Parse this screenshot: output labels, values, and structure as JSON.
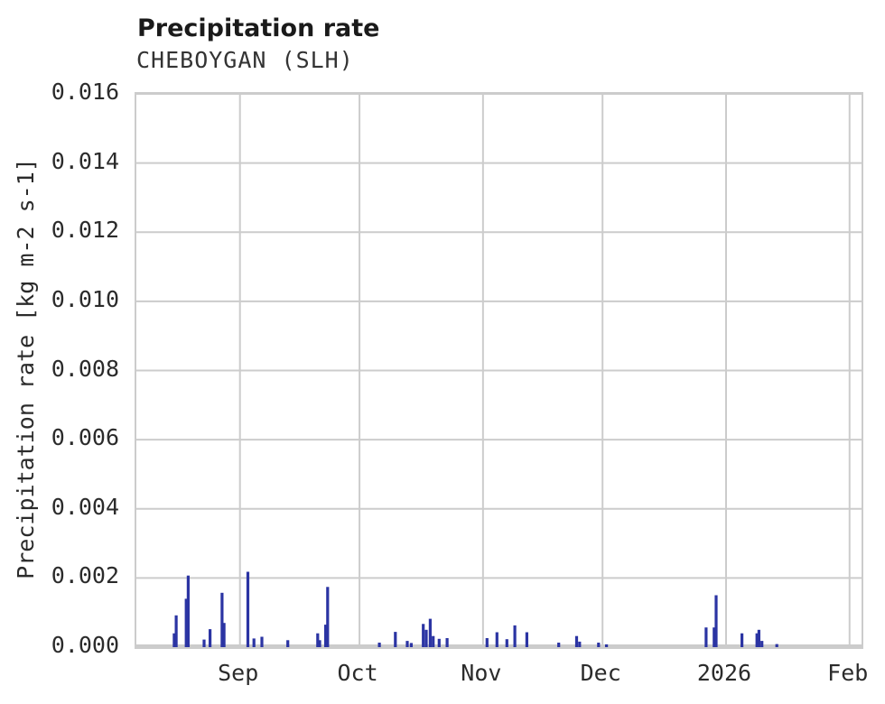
{
  "header": {
    "title": "Precipitation rate",
    "subtitle": "CHEBOYGAN (SLH)"
  },
  "colors": {
    "bar": "#2b34a3",
    "grid": "#cccccc",
    "axis_band": "#cecece",
    "text": "#2b2b2b",
    "title_text": "#1a1a1a"
  },
  "chart_data": {
    "type": "bar",
    "title": "Precipitation rate",
    "subtitle": "CHEBOYGAN (SLH)",
    "xlabel": "",
    "ylabel": "Precipitation rate [kg m-2 s-1]",
    "ylim": [
      0,
      0.016
    ],
    "grid": true,
    "legend": "none",
    "yticks": [
      {
        "value": 0.0,
        "label": "0.000"
      },
      {
        "value": 0.002,
        "label": "0.002"
      },
      {
        "value": 0.004,
        "label": "0.004"
      },
      {
        "value": 0.006,
        "label": "0.006"
      },
      {
        "value": 0.008,
        "label": "0.008"
      },
      {
        "value": 0.01,
        "label": "0.010"
      },
      {
        "value": 0.012,
        "label": "0.012"
      },
      {
        "value": 0.014,
        "label": "0.014"
      },
      {
        "value": 0.016,
        "label": "0.016"
      }
    ],
    "x_range": {
      "start": "2025-08-06",
      "end": "2026-02-04"
    },
    "xticks": [
      {
        "date": "2025-09-01",
        "label": "Sep"
      },
      {
        "date": "2025-10-01",
        "label": "Oct"
      },
      {
        "date": "2025-11-01",
        "label": "Nov"
      },
      {
        "date": "2025-12-01",
        "label": "Dec"
      },
      {
        "date": "2026-01-01",
        "label": "2026"
      },
      {
        "date": "2026-02-01",
        "label": "Feb"
      }
    ],
    "points": [
      {
        "t": "2025-08-15T12:00",
        "v": 0.0004
      },
      {
        "t": "2025-08-16T00:00",
        "v": 0.00092
      },
      {
        "t": "2025-08-18T12:00",
        "v": 0.0014
      },
      {
        "t": "2025-08-19T00:00",
        "v": 0.00207
      },
      {
        "t": "2025-08-23T00:00",
        "v": 0.00022
      },
      {
        "t": "2025-08-24T12:00",
        "v": 0.00052
      },
      {
        "t": "2025-08-27T12:00",
        "v": 0.00157
      },
      {
        "t": "2025-08-28T00:00",
        "v": 0.0007
      },
      {
        "t": "2025-09-03T00:00",
        "v": 0.00218
      },
      {
        "t": "2025-09-04T12:00",
        "v": 0.00025
      },
      {
        "t": "2025-09-06T12:00",
        "v": 0.0003
      },
      {
        "t": "2025-09-13T00:00",
        "v": 0.0002
      },
      {
        "t": "2025-09-20T12:00",
        "v": 0.0004
      },
      {
        "t": "2025-09-21T00:00",
        "v": 0.0002
      },
      {
        "t": "2025-09-22T12:00",
        "v": 0.00065
      },
      {
        "t": "2025-09-23T00:00",
        "v": 0.00174
      },
      {
        "t": "2025-10-06T00:00",
        "v": 0.00013
      },
      {
        "t": "2025-10-10T00:00",
        "v": 0.00044
      },
      {
        "t": "2025-10-13T00:00",
        "v": 0.00018
      },
      {
        "t": "2025-10-14T00:00",
        "v": 0.00012
      },
      {
        "t": "2025-10-17T00:00",
        "v": 0.00067
      },
      {
        "t": "2025-10-17T18:00",
        "v": 0.0005
      },
      {
        "t": "2025-10-18T18:00",
        "v": 0.00082
      },
      {
        "t": "2025-10-19T12:00",
        "v": 0.00032
      },
      {
        "t": "2025-10-21T00:00",
        "v": 0.00024
      },
      {
        "t": "2025-10-23T00:00",
        "v": 0.00026
      },
      {
        "t": "2025-11-02T00:00",
        "v": 0.00026
      },
      {
        "t": "2025-11-04T12:00",
        "v": 0.00043
      },
      {
        "t": "2025-11-07T00:00",
        "v": 0.00023
      },
      {
        "t": "2025-11-09T00:00",
        "v": 0.00063
      },
      {
        "t": "2025-11-12T00:00",
        "v": 0.00043
      },
      {
        "t": "2025-11-20T00:00",
        "v": 0.00013
      },
      {
        "t": "2025-11-24T12:00",
        "v": 0.00032
      },
      {
        "t": "2025-11-25T06:00",
        "v": 0.00016
      },
      {
        "t": "2025-11-30T00:00",
        "v": 0.00013
      },
      {
        "t": "2025-12-02T00:00",
        "v": 8e-05
      },
      {
        "t": "2025-12-27T00:00",
        "v": 0.00057
      },
      {
        "t": "2025-12-29T00:00",
        "v": 0.00057
      },
      {
        "t": "2025-12-29T12:00",
        "v": 0.0015
      },
      {
        "t": "2026-01-05T00:00",
        "v": 0.0004
      },
      {
        "t": "2026-01-08T18:00",
        "v": 0.0004
      },
      {
        "t": "2026-01-09T06:00",
        "v": 0.0005
      },
      {
        "t": "2026-01-10T00:00",
        "v": 0.00018
      },
      {
        "t": "2026-01-13T18:00",
        "v": 9e-05
      }
    ]
  }
}
